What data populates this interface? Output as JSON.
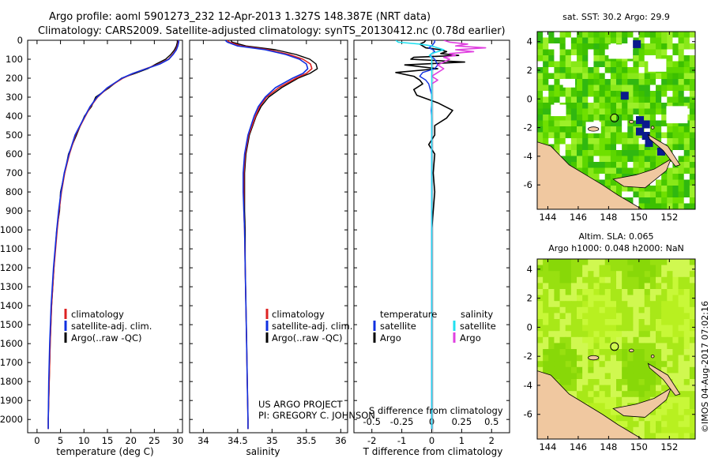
{
  "header": {
    "title_line1": "Argo profile: aoml 5901273_232 12-Apr-2013 1.327S 148.387E (NRT data)",
    "title_line2": "Climatology: CARS2009. Satellite-adjusted climatology: synTS_20130412.nc (0.78d earlier)"
  },
  "colors": {
    "climatology": "#dd2222",
    "satellite": "#1030e0",
    "argo": "#000000",
    "sal_satellite": "#22e0f0",
    "sal_argo": "#e040e0",
    "land": "#f0c8a0",
    "missing": "#ffffff",
    "deep_blue": "#0a1a8c"
  },
  "depth_axis": {
    "ticks": [
      "0",
      "100",
      "200",
      "300",
      "400",
      "500",
      "600",
      "700",
      "800",
      "900",
      "1000",
      "1100",
      "1200",
      "1300",
      "1400",
      "1500",
      "1600",
      "1700",
      "1800",
      "1900",
      "2000"
    ]
  },
  "chart_data": [
    {
      "type": "line",
      "id": "temperature_profile",
      "xlabel": "temperature (deg C)",
      "ylabel": "depth (dbar)",
      "xlim": [
        -2,
        31
      ],
      "ylim": [
        2070,
        0
      ],
      "xticks": [
        "0",
        "5",
        "10",
        "15",
        "20",
        "25",
        "30"
      ],
      "legend": [
        "climatology",
        "satellite-adj. clim.",
        "Argo(..raw -QC)"
      ],
      "depth": [
        0,
        10,
        30,
        50,
        75,
        100,
        125,
        150,
        175,
        200,
        250,
        300,
        350,
        400,
        500,
        600,
        700,
        800,
        900,
        1000,
        1200,
        1400,
        1600,
        1800,
        2000,
        2050
      ],
      "series": [
        {
          "name": "climatology",
          "values": [
            30.1,
            30.1,
            29.9,
            29.6,
            28.9,
            28.0,
            26.0,
            23.2,
            20.5,
            18.3,
            15.1,
            12.9,
            11.4,
            10.3,
            8.2,
            6.9,
            5.9,
            5.2,
            4.7,
            4.3,
            3.6,
            3.1,
            2.8,
            2.6,
            2.4,
            2.4
          ]
        },
        {
          "name": "satellite-adj. clim.",
          "values": [
            30.2,
            30.2,
            30.0,
            29.7,
            29.0,
            28.1,
            26.2,
            23.3,
            20.4,
            18.1,
            15.0,
            12.8,
            11.3,
            10.2,
            8.1,
            6.8,
            5.8,
            5.1,
            4.6,
            4.2,
            3.5,
            3.0,
            2.7,
            2.5,
            2.4,
            2.4
          ]
        },
        {
          "name": "Argo(..raw -QC)",
          "values": [
            29.9,
            29.9,
            29.7,
            29.3,
            28.5,
            27.4,
            25.4,
            23.6,
            20.9,
            18.0,
            15.4,
            12.5,
            11.6,
            10.1,
            8.4,
            6.7,
            5.9,
            5.0,
            4.8,
            4.2,
            3.6,
            3.1,
            2.8,
            2.6,
            2.4,
            2.4
          ]
        }
      ]
    },
    {
      "type": "line",
      "id": "salinity_profile",
      "xlabel": "salinity",
      "ylabel": "depth (dbar)",
      "xlim": [
        33.8,
        36.1
      ],
      "ylim": [
        2070,
        0
      ],
      "xticks": [
        "34",
        "34.5",
        "35",
        "35.5",
        "36"
      ],
      "legend": [
        "climatology",
        "satellite-adj. clim.",
        "Argo(..raw -QC)"
      ],
      "depth": [
        0,
        10,
        30,
        50,
        75,
        100,
        125,
        150,
        175,
        200,
        250,
        300,
        350,
        400,
        500,
        600,
        700,
        800,
        900,
        1000,
        1200,
        1400,
        1600,
        1800,
        2000,
        2050
      ],
      "series": [
        {
          "name": "climatology",
          "values": [
            34.35,
            34.38,
            34.55,
            34.95,
            35.25,
            35.45,
            35.56,
            35.58,
            35.5,
            35.35,
            35.1,
            34.92,
            34.82,
            34.76,
            34.66,
            34.61,
            34.59,
            34.59,
            34.59,
            34.6,
            34.61,
            34.62,
            34.63,
            34.64,
            34.65,
            34.65
          ]
        },
        {
          "name": "satellite-adj. clim.",
          "values": [
            34.32,
            34.35,
            34.5,
            34.9,
            35.2,
            35.4,
            35.5,
            35.52,
            35.45,
            35.3,
            35.05,
            34.9,
            34.8,
            34.74,
            34.65,
            34.6,
            34.58,
            34.58,
            34.59,
            34.6,
            34.61,
            34.62,
            34.63,
            34.64,
            34.65,
            34.65
          ]
        },
        {
          "name": "Argo(..raw -QC)",
          "values": [
            34.4,
            34.42,
            34.62,
            35.05,
            35.35,
            35.55,
            35.64,
            35.66,
            35.55,
            35.38,
            35.14,
            34.95,
            34.84,
            34.77,
            34.67,
            34.62,
            34.6,
            34.6,
            34.6,
            34.61,
            34.61,
            34.62,
            34.63,
            34.64,
            34.65,
            34.65
          ]
        }
      ]
    },
    {
      "type": "line",
      "id": "difference_profile",
      "xlabel": "T difference from climatology",
      "xlabel_top": "S difference from climatology",
      "xlim": [
        -2.6,
        2.6
      ],
      "ylim": [
        2070,
        0
      ],
      "xticks_t": [
        "-2",
        "-1",
        "0",
        "1",
        "2"
      ],
      "xticks_s": [
        "-0.5",
        "-0.25",
        "0",
        "0.25",
        "0.5"
      ],
      "legend_temperature_title": "temperature",
      "legend_salinity_title": "salinity",
      "legend": [
        "satellite",
        "Argo",
        "satellite",
        "Argo"
      ],
      "depth": [
        0,
        10,
        20,
        30,
        40,
        50,
        60,
        70,
        80,
        90,
        100,
        115,
        130,
        150,
        170,
        190,
        210,
        230,
        260,
        290,
        330,
        370,
        410,
        450,
        500,
        550,
        600,
        700,
        800,
        1000,
        1200,
        1400,
        1600,
        1800,
        2000,
        2050
      ],
      "series": [
        {
          "name": "temperature satellite",
          "values": [
            0.1,
            0.1,
            0.05,
            0,
            -0.1,
            0.05,
            0.1,
            0,
            -0.05,
            0.02,
            0.1,
            0.15,
            0.2,
            0.1,
            -0.3,
            -0.4,
            -0.2,
            -0.1,
            -0.05,
            0,
            0,
            -0.02,
            0,
            0,
            0,
            0,
            0,
            0,
            0,
            0,
            0,
            0,
            0,
            0,
            0,
            0
          ]
        },
        {
          "name": "temperature Argo",
          "values": [
            -0.2,
            -0.25,
            -0.4,
            -0.3,
            -0.2,
            0.3,
            0.5,
            0.3,
            0.9,
            -0.6,
            -0.7,
            1.1,
            -0.9,
            0.2,
            -1.2,
            -0.6,
            -0.4,
            -0.3,
            -0.6,
            -0.5,
            0.2,
            0.7,
            0.5,
            0.1,
            0.1,
            -0.1,
            0.1,
            0.05,
            0.1,
            0,
            0,
            0,
            0,
            0,
            0,
            0
          ]
        },
        {
          "name": "salinity satellite",
          "values": [
            -0.3,
            -0.28,
            -0.1,
            0,
            0.05,
            0.1,
            0.05,
            0,
            -0.02,
            0,
            0,
            0,
            0,
            0,
            0,
            0,
            0,
            0,
            0,
            0,
            0,
            0,
            0,
            0,
            0,
            0,
            0,
            0,
            0,
            0,
            0,
            0,
            0,
            0,
            0,
            0
          ]
        },
        {
          "name": "salinity Argo",
          "values": [
            0.1,
            0.15,
            0.3,
            0.2,
            0.45,
            0.2,
            0.35,
            0.15,
            0.2,
            0.1,
            0.15,
            0.1,
            0.05,
            0.1,
            0.05,
            0.0,
            0.05,
            0.0,
            0,
            0,
            0,
            0,
            0,
            0,
            0,
            0,
            0,
            0,
            0,
            0,
            0,
            0,
            0,
            0,
            0,
            0
          ]
        }
      ]
    },
    {
      "type": "heatmap",
      "id": "sst_map",
      "title": "sat. SST: 30.2  Argo: 29.9",
      "xticks": [
        "144",
        "146",
        "148",
        "150",
        "152"
      ],
      "yticks": [
        "4",
        "2",
        "0",
        "-2",
        "-4",
        "-6"
      ],
      "xlim": [
        143.3,
        153.7
      ],
      "ylim": [
        -7.7,
        4.7
      ],
      "profile_marker": {
        "lon": 148.387,
        "lat": -1.327
      }
    },
    {
      "type": "heatmap",
      "id": "sla_map",
      "title_line1": "Altim. SLA: 0.065",
      "title_line2": "Argo h1000: 0.048 h2000: NaN",
      "xticks": [
        "144",
        "146",
        "148",
        "150",
        "152"
      ],
      "yticks": [
        "4",
        "2",
        "0",
        "-2",
        "-4",
        "-6"
      ],
      "xlim": [
        143.3,
        153.7
      ],
      "ylim": [
        -7.7,
        4.7
      ],
      "profile_marker": {
        "lon": 148.387,
        "lat": -1.327
      }
    }
  ],
  "credits": {
    "line1": "US ARGO PROJECT",
    "line2": "PI: GREGORY C. JOHNSON",
    "side_stamp": "©IMOS 04-Aug-2017 07:02:16"
  }
}
